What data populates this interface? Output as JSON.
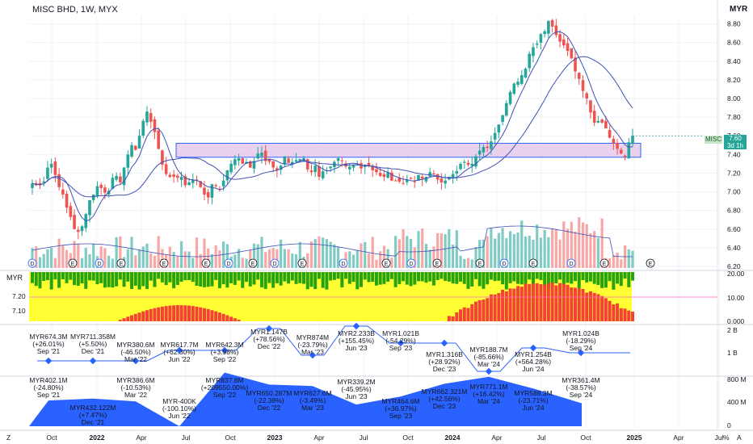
{
  "header": {
    "symbol_title": "MISC BHD, 1W, MYX",
    "currency_label": "MYR",
    "subpanel_currency": "MYR"
  },
  "last_price": {
    "ticker": "MISC",
    "value": "7.60",
    "countdown": "3d 1h"
  },
  "colors": {
    "up": "#26a69a",
    "down": "#ef5350",
    "volume_up": "#80cbc4",
    "volume_down": "#f7a8a6",
    "ma_line": "#3f51b5",
    "zone_fill": "#e1bee7",
    "zone_border": "#2962ff",
    "ind_yellow": "#ffff33",
    "ind_green": "#27a312",
    "ind_red": "#f44336",
    "earn_line": "#2962ff",
    "revenue_fill": "#2962ff"
  },
  "chart_data": [
    {
      "type": "candlestick",
      "panel": "price",
      "ylim": [
        6.2,
        8.9
      ],
      "yticks": [
        "8.80",
        "8.60",
        "8.40",
        "8.20",
        "8.00",
        "7.80",
        "7.60",
        "7.40",
        "7.20",
        "7.00",
        "6.80",
        "6.60",
        "6.40",
        "6.20"
      ],
      "time_axis": [
        "Oct",
        "2022",
        "Apr",
        "Jul",
        "Oct",
        "2023",
        "Apr",
        "Jul",
        "Oct",
        "2024",
        "Apr",
        "Jul",
        "Oct",
        "2025",
        "Apr",
        "Jul"
      ],
      "close_series": [
        7.09,
        7.07,
        7.07,
        7.11,
        7.26,
        7.3,
        7.18,
        7.05,
        6.97,
        6.83,
        6.73,
        6.6,
        6.57,
        6.63,
        6.76,
        6.91,
        6.97,
        7.06,
        7.04,
        6.99,
        7.01,
        7.15,
        7.17,
        7.1,
        7.26,
        7.4,
        7.5,
        7.45,
        7.6,
        7.76,
        7.86,
        7.75,
        7.64,
        7.46,
        7.29,
        7.19,
        7.16,
        7.16,
        7.15,
        7.16,
        7.07,
        7.1,
        7.13,
        7.12,
        7.05,
        6.97,
        6.94,
        7.08,
        7.06,
        7.03,
        7.12,
        7.23,
        7.3,
        7.35,
        7.36,
        7.3,
        7.32,
        7.26,
        7.33,
        7.41,
        7.42,
        7.33,
        7.32,
        7.26,
        7.23,
        7.28,
        7.38,
        7.31,
        7.32,
        7.34,
        7.35,
        7.36,
        7.24,
        7.21,
        7.28,
        7.16,
        7.22,
        7.23,
        7.27,
        7.32,
        7.36,
        7.33,
        7.27,
        7.27,
        7.29,
        7.29,
        7.25,
        7.29,
        7.28,
        7.23,
        7.21,
        7.17,
        7.16,
        7.21,
        7.12,
        7.12,
        7.11,
        7.09,
        7.13,
        7.14,
        7.11,
        7.18,
        7.14,
        7.16,
        7.21,
        7.19,
        7.13,
        7.1,
        7.12,
        7.16,
        7.19,
        7.22,
        7.3,
        7.32,
        7.29,
        7.3,
        7.38,
        7.44,
        7.48,
        7.47,
        7.54,
        7.63,
        7.72,
        7.82,
        7.95,
        8.07,
        8.16,
        8.18,
        8.25,
        8.32,
        8.48,
        8.55,
        8.59,
        8.69,
        8.72,
        8.83,
        8.77,
        8.68,
        8.61,
        8.57,
        8.51,
        8.43,
        8.29,
        8.21,
        8.08,
        8.0,
        7.85,
        7.74,
        7.76,
        7.74,
        7.68,
        7.58,
        7.52,
        7.46,
        7.41,
        7.37,
        7.53,
        7.6
      ],
      "zone": {
        "y_top": 7.52,
        "y_bottom": 7.37,
        "label": ""
      },
      "volume_note": "volume bars with moving average at panel bottom"
    },
    {
      "type": "area",
      "panel": "indicator",
      "yticks": [
        "20.00",
        "10.00",
        "0.000"
      ],
      "left_ticks": [
        "7.20",
        "7.10"
      ],
      "ylim": [
        0,
        20
      ]
    },
    {
      "type": "earnings",
      "panel": "earnings",
      "yticks": [
        "2 B",
        "1 B"
      ],
      "events": [
        {
          "value": "MYR674.3M",
          "change": "(+26.01%)",
          "period": "Sep '21"
        },
        {
          "value": "MYR711.358M",
          "change": "(+5.50%)",
          "period": "Dec '21"
        },
        {
          "value": "MYR380.6M",
          "change": "(-46.50%)",
          "period": "Mar '22"
        },
        {
          "value": "MYR617.7M",
          "change": "(+62.30%)",
          "period": "Jun '22"
        },
        {
          "value": "MYR642.3M",
          "change": "(+3.98%)",
          "period": "Sep '22"
        },
        {
          "value": "MYR1.147B",
          "change": "(+78.56%)",
          "period": "Dec '22"
        },
        {
          "value": "MYR874M",
          "change": "(-23.79%)",
          "period": "Mar '23"
        },
        {
          "value": "MYR2.233B",
          "change": "(+155.45%)",
          "period": "Jun '23"
        },
        {
          "value": "MYR1.021B",
          "change": "(-54.29%)",
          "period": "Sep '23"
        },
        {
          "value": "MYR1.316B",
          "change": "(+28.92%)",
          "period": "Dec '23"
        },
        {
          "value": "MYR188.7M",
          "change": "(-85.66%)",
          "period": "Mar '24"
        },
        {
          "value": "MYR1.254B",
          "change": "(+564.28%)",
          "period": "Jun '24"
        },
        {
          "value": "MYR1.024B",
          "change": "(-18.29%)",
          "period": "Sep '24"
        }
      ]
    },
    {
      "type": "area",
      "panel": "revenue",
      "yticks": [
        "800 M",
        "400 M",
        "0"
      ],
      "events": [
        {
          "value": "MYR402.1M",
          "change": "(-24.80%)",
          "period": "Sep '21"
        },
        {
          "value": "MYR432.122M",
          "change": "(+7.47%)",
          "period": "Dec '21"
        },
        {
          "value": "MYR386.6M",
          "change": "(-10.53%)",
          "period": "Mar '22"
        },
        {
          "value": "MYR-400K",
          "change": "(-100.10%)",
          "period": "Jun '22"
        },
        {
          "value": "MYR837.8M",
          "change": "(+209550.00%)",
          "period": "Sep '22"
        },
        {
          "value": "MYR650.287M",
          "change": "(-22.38%)",
          "period": "Dec '22"
        },
        {
          "value": "MYR627.6M",
          "change": "(-3.49%)",
          "period": "Mar '23"
        },
        {
          "value": "MYR339.2M",
          "change": "(-45.95%)",
          "period": "Jun '23"
        },
        {
          "value": "MYR464.6M",
          "change": "(+36.97%)",
          "period": "Sep '23"
        },
        {
          "value": "MYR662.321M",
          "change": "(+42.56%)",
          "period": "Dec '23"
        },
        {
          "value": "MYR771.1M",
          "change": "(+16.42%)",
          "period": "Mar '24"
        },
        {
          "value": "MYR588.3M",
          "change": "(-23.71%)",
          "period": "Jun '24"
        },
        {
          "value": "MYR361.4M",
          "change": "(-38.57%)",
          "period": "Sep '24"
        }
      ]
    }
  ],
  "markers": {
    "earnings_letter": "E",
    "dividend_letter": "D"
  },
  "bottom_bar": {
    "left_icon_label": "Z",
    "right_labels": [
      "%",
      "A"
    ]
  }
}
